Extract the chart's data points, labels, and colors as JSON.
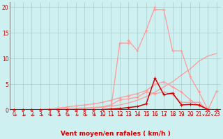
{
  "xlabel": "Vent moyen/en rafales ( km/h )",
  "xlim": [
    -0.5,
    23.5
  ],
  "ylim": [
    0,
    21
  ],
  "xticks": [
    0,
    1,
    2,
    3,
    4,
    5,
    6,
    7,
    8,
    9,
    10,
    11,
    12,
    13,
    14,
    15,
    16,
    17,
    18,
    19,
    20,
    21,
    22,
    23
  ],
  "yticks": [
    0,
    5,
    10,
    15,
    20
  ],
  "bg_color": "#cef0f0",
  "grid_color": "#aacccc",
  "dark_red": "#cc0000",
  "light_red": "#ff9999",
  "line_thin_x": [
    0,
    1,
    2,
    3,
    4,
    5,
    6,
    7,
    8,
    9,
    10,
    11,
    12,
    13,
    14,
    15,
    16,
    17,
    18,
    19,
    20,
    21,
    22,
    23
  ],
  "line_thin_y": [
    0,
    0,
    0,
    0,
    0.05,
    0.1,
    0.15,
    0.2,
    0.3,
    0.4,
    0.55,
    0.75,
    1.0,
    1.4,
    1.9,
    2.6,
    3.5,
    4.5,
    5.5,
    6.8,
    8.0,
    9.5,
    10.5,
    11.0
  ],
  "line_med_x": [
    0,
    1,
    2,
    3,
    4,
    5,
    6,
    7,
    8,
    9,
    10,
    11,
    12,
    13,
    14,
    15,
    16,
    17,
    18,
    19,
    20,
    21,
    22,
    23
  ],
  "line_med_y": [
    0,
    0,
    0,
    0.1,
    0.2,
    0.4,
    0.6,
    0.8,
    1.0,
    1.2,
    1.5,
    1.9,
    2.4,
    2.8,
    3.2,
    3.8,
    5.0,
    5.5,
    4.5,
    3.5,
    2.0,
    0.8,
    0.2,
    0.05
  ],
  "line_peak_x": [
    0,
    1,
    2,
    3,
    4,
    5,
    6,
    7,
    8,
    9,
    10,
    11,
    12,
    13,
    13,
    14,
    15,
    16,
    16,
    17,
    18,
    19,
    20,
    21,
    22,
    23
  ],
  "line_peak_y": [
    0,
    0,
    0,
    0,
    0,
    0,
    0,
    0,
    0,
    0,
    0,
    0.2,
    13.0,
    13.0,
    13.5,
    11.5,
    15.5,
    20.0,
    19.5,
    19.5,
    11.5,
    11.5,
    6.5,
    3.5,
    0.1,
    0.05
  ],
  "line_dark_x": [
    0,
    1,
    2,
    3,
    4,
    5,
    6,
    7,
    8,
    9,
    10,
    11,
    12,
    13,
    14,
    15,
    16,
    17,
    18,
    19,
    20,
    21,
    22,
    23
  ],
  "line_dark_y": [
    0,
    0,
    0,
    0,
    0,
    0,
    0,
    0,
    0,
    0,
    0.1,
    0.2,
    0.3,
    0.5,
    0.7,
    1.2,
    6.2,
    3.0,
    3.3,
    1.0,
    1.1,
    1.0,
    0.1,
    0.0
  ],
  "line_extra1_x": [
    0,
    1,
    2,
    3,
    4,
    5,
    6,
    7,
    8,
    9,
    10,
    11,
    12,
    13,
    14,
    15,
    16,
    17,
    18,
    19,
    20,
    21,
    22,
    23
  ],
  "line_extra1_y": [
    0,
    0,
    0,
    0.1,
    0.2,
    0.25,
    0.3,
    0.35,
    0.4,
    0.5,
    0.65,
    1.0,
    2.0,
    2.2,
    2.5,
    3.5,
    3.2,
    3.5,
    3.0,
    1.5,
    1.5,
    1.5,
    0.0,
    3.7
  ]
}
